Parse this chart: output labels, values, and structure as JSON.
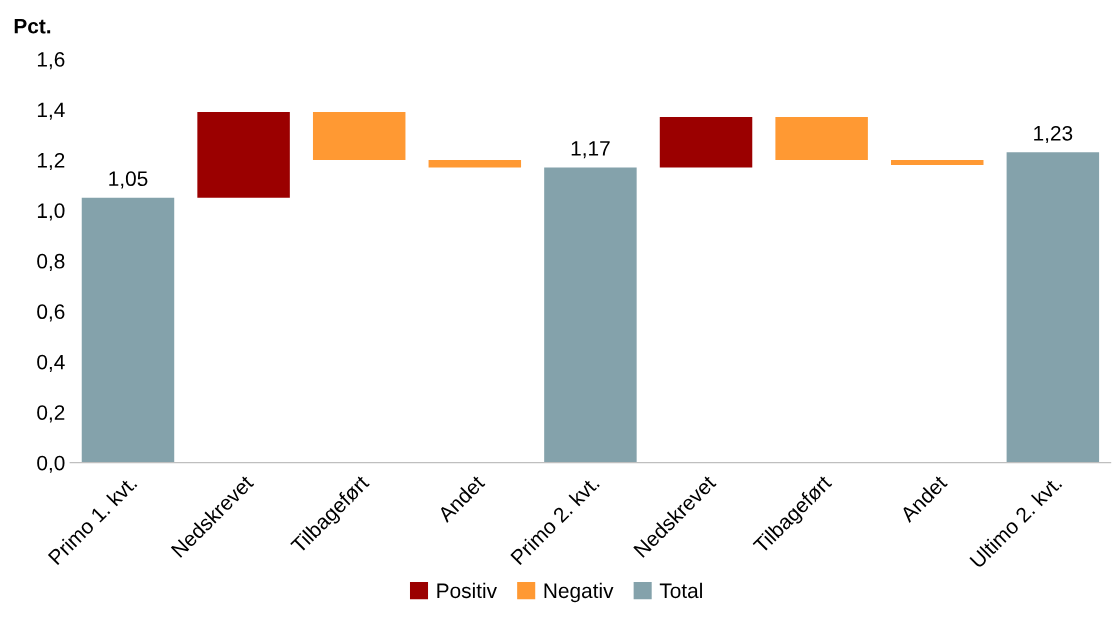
{
  "chart_data": {
    "type": "bar",
    "ylabel": "Pct.",
    "categories": [
      "Primo 1. kvt.",
      "Nedskrevet",
      "Tilbageført",
      "Andet",
      "Primo 2. kvt.",
      "Nedskrevet",
      "Tilbageført",
      "Andet",
      "Ultimo 2. kvt."
    ],
    "series": [
      {
        "name": "Positiv",
        "color": "#9b0000",
        "values": [
          null,
          0.34,
          null,
          null,
          null,
          0.2,
          null,
          null,
          null
        ],
        "base": [
          null,
          1.05,
          null,
          null,
          null,
          1.17,
          null,
          null,
          null
        ]
      },
      {
        "name": "Negativ",
        "color": "#ff9933",
        "values": [
          null,
          null,
          0.19,
          0.03,
          null,
          null,
          0.17,
          0.02,
          null
        ],
        "base": [
          null,
          null,
          1.2,
          1.17,
          null,
          null,
          1.2,
          1.18,
          null
        ]
      },
      {
        "name": "Total",
        "color": "#84a2ab",
        "values": [
          1.05,
          null,
          null,
          null,
          1.17,
          null,
          null,
          null,
          1.23
        ],
        "value_labels": [
          "1,05",
          null,
          null,
          null,
          "1,17",
          null,
          null,
          null,
          "1,23"
        ]
      }
    ],
    "ylim": [
      0,
      1.6
    ],
    "yticks": [
      {
        "value": 0,
        "label": "0,0"
      },
      {
        "value": 0.2,
        "label": "0,2"
      },
      {
        "value": 0.4,
        "label": "0,4"
      },
      {
        "value": 0.6,
        "label": "0,6"
      },
      {
        "value": 0.8,
        "label": "0,8"
      },
      {
        "value": 1.0,
        "label": "1,0"
      },
      {
        "value": 1.2,
        "label": "1,2"
      },
      {
        "value": 1.4,
        "label": "1,4"
      },
      {
        "value": 1.6,
        "label": "1,6"
      }
    ],
    "grid": false,
    "legend": "bottom"
  }
}
